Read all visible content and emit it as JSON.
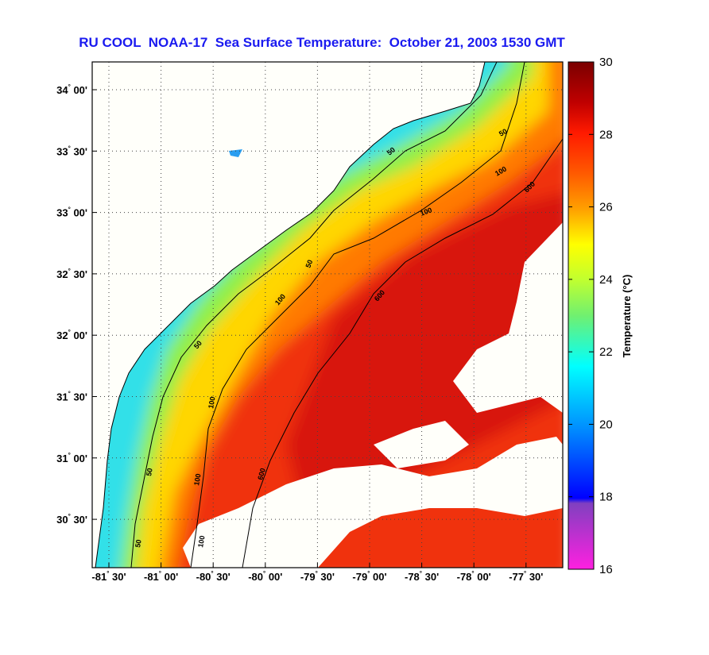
{
  "title": "RU COOL  NOAA-17  Sea Surface Temperature:  October 21, 2003 1530 GMT",
  "map": {
    "lon_ticks": [
      {
        "deg": "-81",
        "min": "30'"
      },
      {
        "deg": "-81",
        "min": "00'"
      },
      {
        "deg": "-80",
        "min": "30'"
      },
      {
        "deg": "-80",
        "min": "00'"
      },
      {
        "deg": "-79",
        "min": "30'"
      },
      {
        "deg": "-79",
        "min": "00'"
      },
      {
        "deg": "-78",
        "min": "30'"
      },
      {
        "deg": "-78",
        "min": "00'"
      },
      {
        "deg": "-77",
        "min": "30'"
      }
    ],
    "lat_ticks": [
      {
        "deg": "34",
        "min": "00'"
      },
      {
        "deg": "33",
        "min": "30'"
      },
      {
        "deg": "33",
        "min": "00'"
      },
      {
        "deg": "32",
        "min": "30'"
      },
      {
        "deg": "32",
        "min": "00'"
      },
      {
        "deg": "31",
        "min": "30'"
      },
      {
        "deg": "31",
        "min": "00'"
      },
      {
        "deg": "30",
        "min": "30'"
      }
    ],
    "contour_labels": [
      "50",
      "50",
      "50",
      "50",
      "50",
      "50",
      "100",
      "100",
      "100",
      "100",
      "100",
      "100",
      "600",
      "600",
      "600"
    ]
  },
  "colorbar": {
    "label": "Temperature (°C)",
    "ticks": [
      "30",
      "28",
      "26",
      "24",
      "22",
      "20",
      "18",
      "16"
    ],
    "range": [
      16,
      30
    ]
  }
}
